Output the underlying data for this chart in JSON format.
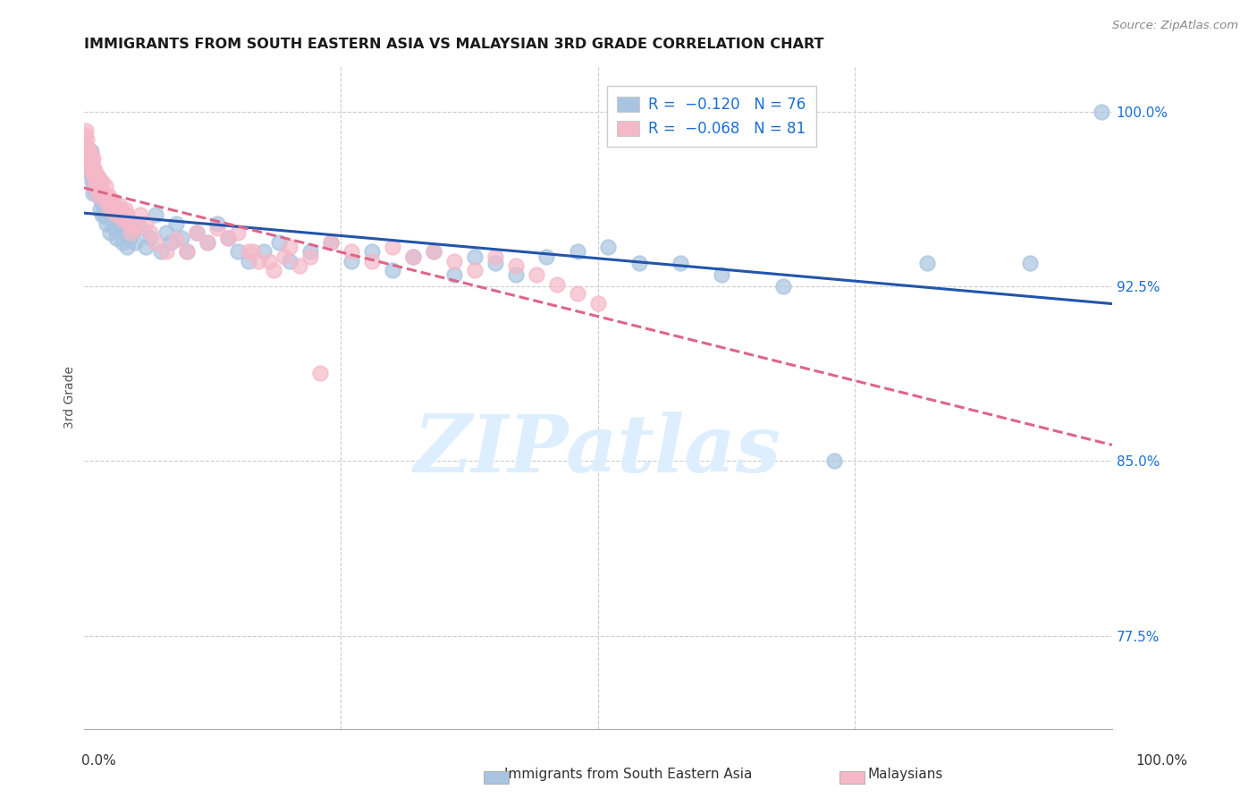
{
  "title": "IMMIGRANTS FROM SOUTH EASTERN ASIA VS MALAYSIAN 3RD GRADE CORRELATION CHART",
  "source": "Source: ZipAtlas.com",
  "ylabel": "3rd Grade",
  "ytick_vals": [
    0.775,
    0.85,
    0.925,
    1.0
  ],
  "ytick_labels": [
    "77.5%",
    "85.0%",
    "92.5%",
    "100.0%"
  ],
  "xlim": [
    0.0,
    1.0
  ],
  "ylim": [
    0.735,
    1.02
  ],
  "legend_blue_label": "R =  −0.120   N = 76",
  "legend_pink_label": "R =  −0.068   N = 81",
  "legend_label_blue": "Immigrants from South Eastern Asia",
  "legend_label_pink": "Malaysians",
  "blue_color": "#a8c4e0",
  "pink_color": "#f5b8c8",
  "blue_line_color": "#2255aa",
  "pink_line_color": "#dd6688",
  "watermark_text": "ZIPatlas",
  "watermark_color": "#ddeeff",
  "blue_scatter_x": [
    0.002,
    0.003,
    0.004,
    0.005,
    0.006,
    0.007,
    0.008,
    0.008,
    0.009,
    0.01,
    0.01,
    0.011,
    0.012,
    0.013,
    0.014,
    0.015,
    0.016,
    0.017,
    0.018,
    0.019,
    0.02,
    0.022,
    0.024,
    0.025,
    0.026,
    0.028,
    0.03,
    0.032,
    0.035,
    0.038,
    0.04,
    0.042,
    0.045,
    0.048,
    0.05,
    0.055,
    0.06,
    0.065,
    0.07,
    0.075,
    0.08,
    0.085,
    0.09,
    0.095,
    0.1,
    0.11,
    0.12,
    0.13,
    0.14,
    0.15,
    0.16,
    0.175,
    0.19,
    0.2,
    0.22,
    0.24,
    0.26,
    0.28,
    0.3,
    0.32,
    0.34,
    0.36,
    0.38,
    0.4,
    0.42,
    0.45,
    0.48,
    0.51,
    0.54,
    0.58,
    0.62,
    0.68,
    0.73,
    0.82,
    0.92,
    0.99
  ],
  "blue_scatter_y": [
    0.98,
    0.975,
    0.978,
    0.982,
    0.976,
    0.983,
    0.97,
    0.972,
    0.965,
    0.968,
    0.974,
    0.97,
    0.966,
    0.972,
    0.968,
    0.964,
    0.958,
    0.962,
    0.956,
    0.96,
    0.955,
    0.952,
    0.958,
    0.96,
    0.948,
    0.954,
    0.95,
    0.946,
    0.952,
    0.944,
    0.948,
    0.942,
    0.946,
    0.952,
    0.944,
    0.95,
    0.942,
    0.946,
    0.956,
    0.94,
    0.948,
    0.944,
    0.952,
    0.946,
    0.94,
    0.948,
    0.944,
    0.952,
    0.946,
    0.94,
    0.936,
    0.94,
    0.944,
    0.936,
    0.94,
    0.944,
    0.936,
    0.94,
    0.932,
    0.938,
    0.94,
    0.93,
    0.938,
    0.935,
    0.93,
    0.938,
    0.94,
    0.942,
    0.935,
    0.935,
    0.93,
    0.925,
    0.85,
    0.935,
    0.935,
    1.0
  ],
  "pink_scatter_x": [
    0.001,
    0.002,
    0.003,
    0.003,
    0.004,
    0.004,
    0.005,
    0.005,
    0.006,
    0.007,
    0.007,
    0.008,
    0.008,
    0.009,
    0.01,
    0.01,
    0.011,
    0.012,
    0.012,
    0.013,
    0.014,
    0.015,
    0.015,
    0.016,
    0.017,
    0.018,
    0.019,
    0.02,
    0.021,
    0.022,
    0.024,
    0.025,
    0.026,
    0.028,
    0.03,
    0.032,
    0.034,
    0.036,
    0.038,
    0.04,
    0.042,
    0.044,
    0.046,
    0.048,
    0.05,
    0.055,
    0.06,
    0.065,
    0.07,
    0.08,
    0.09,
    0.1,
    0.11,
    0.12,
    0.13,
    0.14,
    0.15,
    0.165,
    0.18,
    0.2,
    0.22,
    0.24,
    0.26,
    0.28,
    0.3,
    0.32,
    0.34,
    0.36,
    0.38,
    0.4,
    0.42,
    0.44,
    0.46,
    0.48,
    0.5,
    0.16,
    0.17,
    0.185,
    0.195,
    0.21,
    0.23
  ],
  "pink_scatter_y": [
    0.99,
    0.992,
    0.988,
    0.985,
    0.98,
    0.984,
    0.982,
    0.978,
    0.98,
    0.976,
    0.982,
    0.978,
    0.974,
    0.98,
    0.976,
    0.972,
    0.968,
    0.974,
    0.97,
    0.966,
    0.972,
    0.968,
    0.964,
    0.97,
    0.966,
    0.97,
    0.966,
    0.964,
    0.968,
    0.962,
    0.96,
    0.964,
    0.958,
    0.962,
    0.96,
    0.956,
    0.96,
    0.958,
    0.954,
    0.958,
    0.956,
    0.952,
    0.948,
    0.952,
    0.95,
    0.956,
    0.952,
    0.948,
    0.944,
    0.94,
    0.945,
    0.94,
    0.948,
    0.944,
    0.95,
    0.946,
    0.948,
    0.94,
    0.936,
    0.942,
    0.938,
    0.944,
    0.94,
    0.936,
    0.942,
    0.938,
    0.94,
    0.936,
    0.932,
    0.938,
    0.934,
    0.93,
    0.926,
    0.922,
    0.918,
    0.94,
    0.936,
    0.932,
    0.938,
    0.934,
    0.888
  ]
}
